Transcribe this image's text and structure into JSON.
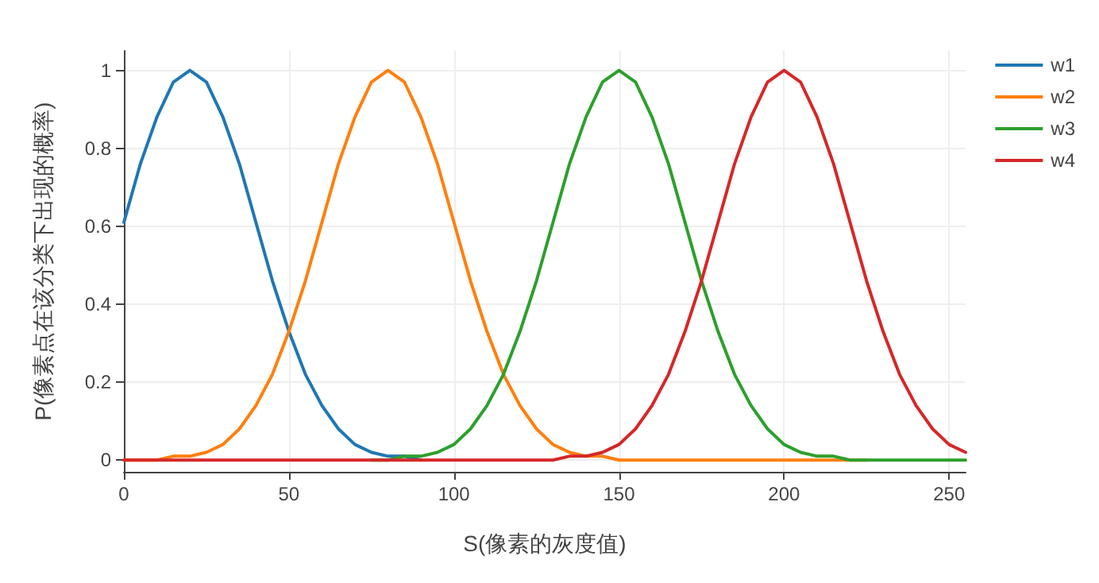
{
  "chart_data": {
    "type": "line",
    "xlabel": "S(像素的灰度值)",
    "ylabel": "P(像素点在该分类下出现的概率)",
    "x": [
      0,
      5,
      10,
      15,
      20,
      25,
      30,
      35,
      40,
      45,
      50,
      55,
      60,
      65,
      70,
      75,
      80,
      85,
      90,
      95,
      100,
      105,
      110,
      115,
      120,
      125,
      130,
      135,
      140,
      145,
      150,
      155,
      160,
      165,
      170,
      175,
      180,
      185,
      190,
      195,
      200,
      205,
      210,
      215,
      220,
      225,
      230,
      235,
      240,
      245,
      250,
      255
    ],
    "series": [
      {
        "name": "w1",
        "color": "#1f77b4",
        "values": [
          0.61,
          0.76,
          0.88,
          0.97,
          1,
          0.97,
          0.88,
          0.76,
          0.61,
          0.46,
          0.33,
          0.22,
          0.14,
          0.08,
          0.04,
          0.02,
          0.01,
          0.01,
          0,
          null,
          null,
          null,
          null,
          null,
          null,
          null,
          null,
          null,
          null,
          null,
          null,
          null,
          null,
          null,
          null,
          null,
          null,
          null,
          null,
          null,
          null,
          null,
          null,
          null,
          null,
          null,
          null,
          null,
          null,
          null,
          null,
          null
        ]
      },
      {
        "name": "w2",
        "color": "#ff7f0e",
        "values": [
          0,
          0,
          0,
          0.01,
          0.01,
          0.02,
          0.04,
          0.08,
          0.14,
          0.22,
          0.33,
          0.46,
          0.61,
          0.76,
          0.88,
          0.97,
          1,
          0.97,
          0.88,
          0.76,
          0.61,
          0.46,
          0.33,
          0.22,
          0.14,
          0.08,
          0.04,
          0.02,
          0.01,
          0.01,
          0,
          0,
          0,
          0,
          0,
          0,
          0,
          0,
          0,
          0,
          0,
          0,
          0,
          0,
          0,
          0,
          null,
          null,
          null,
          null,
          null,
          null
        ]
      },
      {
        "name": "w3",
        "color": "#2ca02c",
        "values": [
          null,
          null,
          null,
          null,
          null,
          null,
          null,
          null,
          null,
          null,
          null,
          null,
          null,
          null,
          null,
          0,
          0,
          0.01,
          0.01,
          0.02,
          0.04,
          0.08,
          0.14,
          0.22,
          0.33,
          0.46,
          0.61,
          0.76,
          0.88,
          0.97,
          1,
          0.97,
          0.88,
          0.76,
          0.61,
          0.46,
          0.33,
          0.22,
          0.14,
          0.08,
          0.04,
          0.02,
          0.01,
          0.01,
          0,
          0,
          0,
          0,
          0,
          0,
          0,
          0
        ]
      },
      {
        "name": "w4",
        "color": "#d62728",
        "values": [
          0,
          0,
          0,
          0,
          0,
          0,
          0,
          0,
          0,
          0,
          0,
          0,
          0,
          0,
          0,
          0,
          0,
          0,
          0,
          0,
          0,
          0,
          0,
          0,
          0,
          0,
          0,
          0.01,
          0.01,
          0.02,
          0.04,
          0.08,
          0.14,
          0.22,
          0.33,
          0.46,
          0.61,
          0.76,
          0.88,
          0.97,
          1,
          0.97,
          0.88,
          0.76,
          0.61,
          0.46,
          0.33,
          0.22,
          0.14,
          0.08,
          0.04,
          0.02
        ]
      }
    ],
    "xlim": [
      0,
      255
    ],
    "xticks": [
      0,
      50,
      100,
      150,
      200,
      250
    ],
    "ylim": [
      -0.03,
      1.05
    ],
    "yticks": [
      0,
      0.2,
      0.4,
      0.6,
      0.8,
      1
    ],
    "grid": true,
    "legend": "top right",
    "marker": "none",
    "line_style": "solid"
  }
}
